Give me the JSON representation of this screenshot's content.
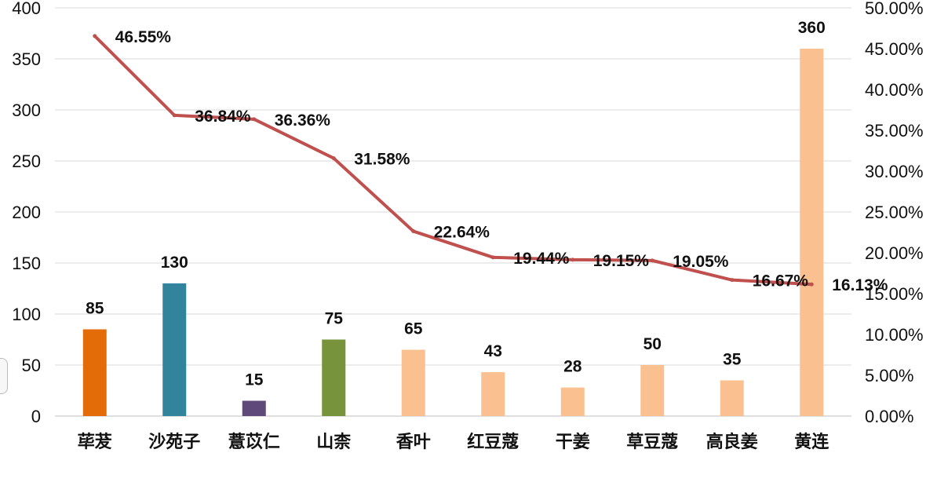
{
  "chart_data": {
    "type": "bar",
    "categories": [
      "荜茇",
      "沙苑子",
      "薏苡仁",
      "山柰",
      "香叶",
      "红豆蔻",
      "干姜",
      "草豆蔻",
      "高良姜",
      "黄连"
    ],
    "series": [
      {
        "type": "bar",
        "axis": "left",
        "values": [
          85,
          130,
          15,
          75,
          65,
          43,
          28,
          50,
          35,
          360
        ],
        "labels": [
          "85",
          "130",
          "15",
          "75",
          "65",
          "43",
          "28",
          "50",
          "35",
          "360"
        ],
        "colors": [
          "#e36c09",
          "#31849b",
          "#5f497a",
          "#77933c",
          "#fac08f",
          "#fac08f",
          "#fac08f",
          "#fac08f",
          "#fac08f",
          "#fac08f"
        ]
      },
      {
        "type": "line",
        "axis": "right",
        "values": [
          46.55,
          36.84,
          36.36,
          31.58,
          22.64,
          19.44,
          19.15,
          19.05,
          16.67,
          16.13
        ],
        "labels": [
          "46.55%",
          "36.84%",
          "36.36%",
          "31.58%",
          "22.64%",
          "19.44%",
          "19.15%",
          "19.05%",
          "16.67%",
          "16.13%"
        ],
        "color": "#c0504d"
      }
    ],
    "y_left": {
      "min": 0,
      "max": 400,
      "ticks": [
        "0",
        "50",
        "100",
        "150",
        "200",
        "250",
        "300",
        "350",
        "400"
      ]
    },
    "y_right": {
      "min": 0,
      "max": 50,
      "ticks": [
        "0.00%",
        "5.00%",
        "10.00%",
        "15.00%",
        "20.00%",
        "25.00%",
        "30.00%",
        "35.00%",
        "40.00%",
        "45.00%",
        "50.00%"
      ]
    },
    "grid": true,
    "legend": "none"
  }
}
